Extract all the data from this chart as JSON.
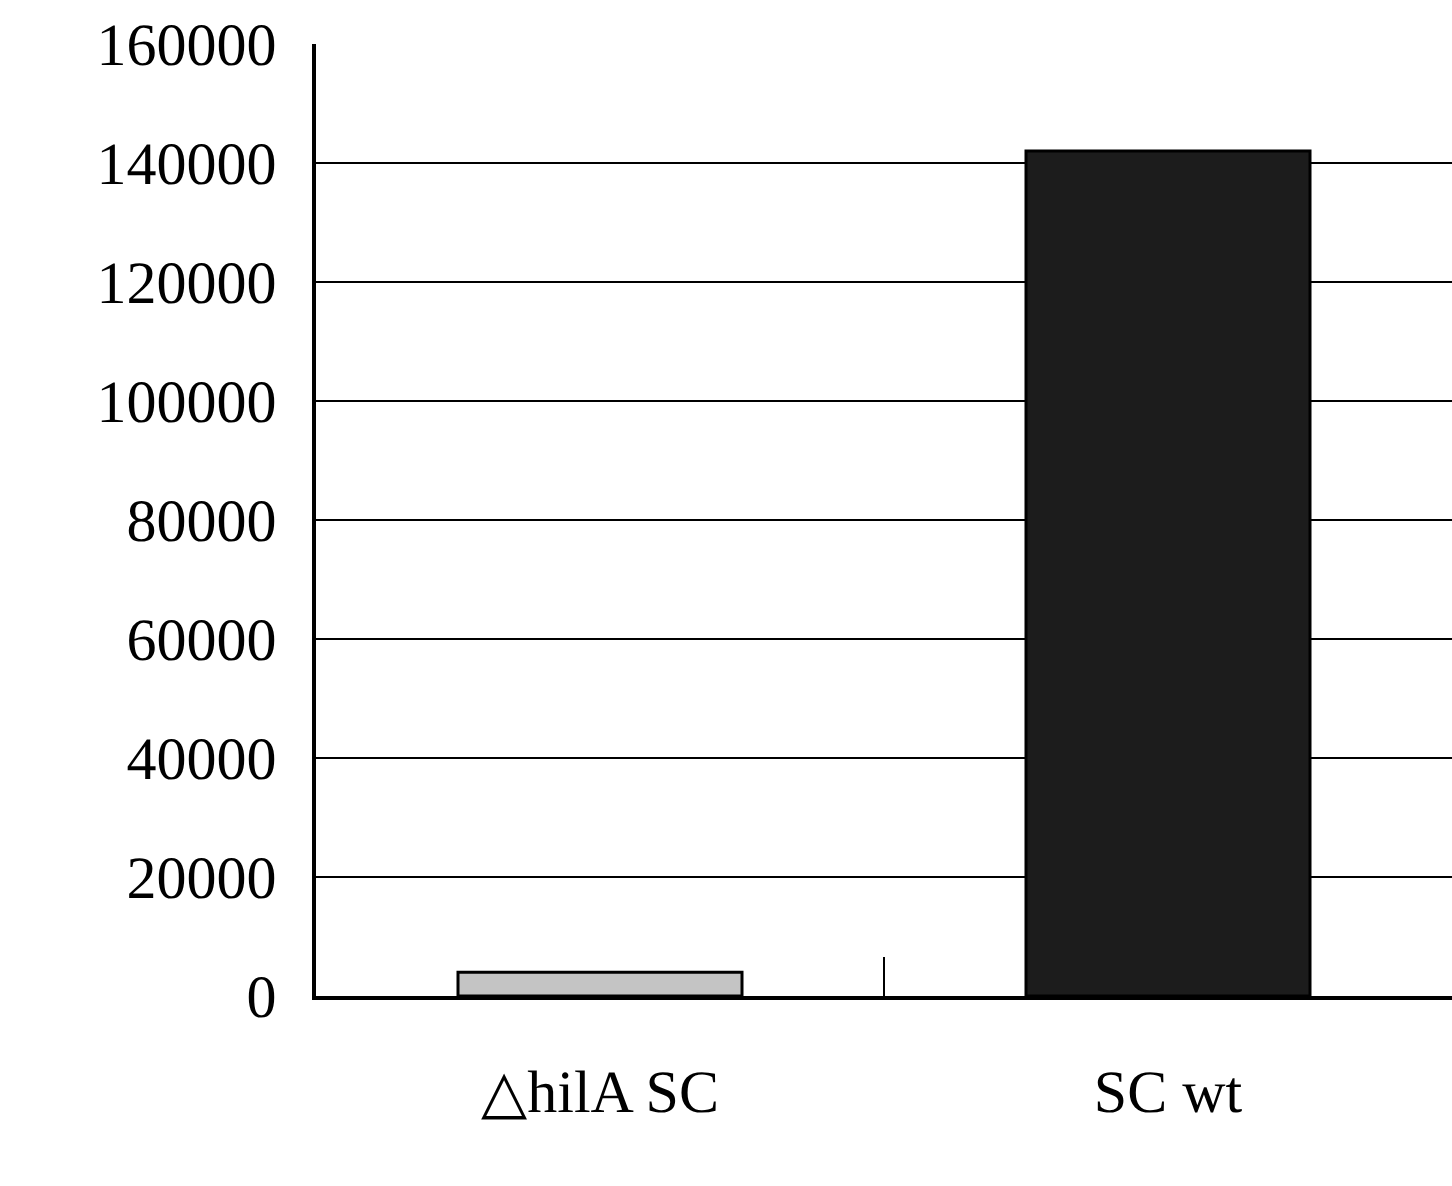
{
  "chart_data": {
    "type": "bar",
    "categories": [
      "△hilA SC",
      "SC wt"
    ],
    "values": [
      4000,
      142000
    ],
    "colors": [
      "#c4c4c4",
      "#1c1c1c"
    ],
    "ylim": [
      0,
      160000
    ],
    "yticks": [
      0,
      20000,
      40000,
      60000,
      80000,
      100000,
      120000,
      140000,
      160000
    ],
    "grid": "y"
  }
}
